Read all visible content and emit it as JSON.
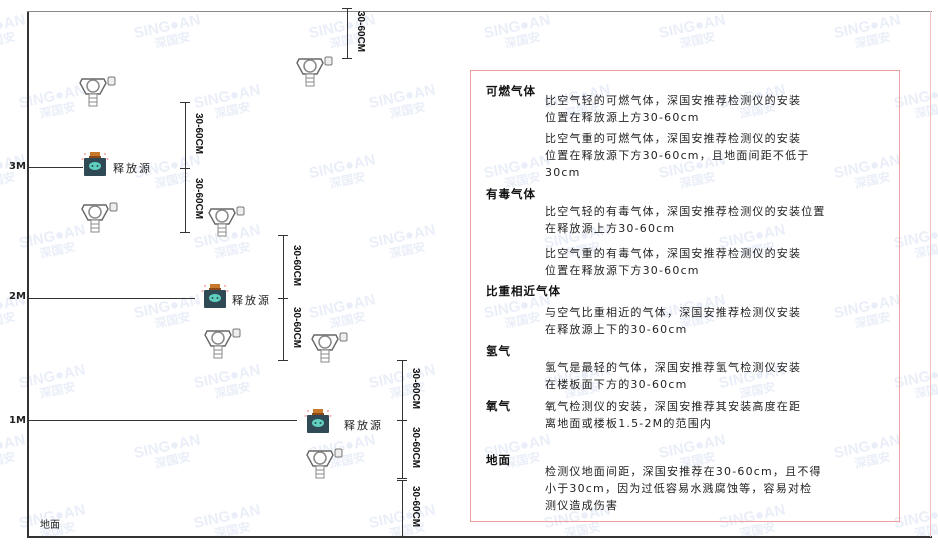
{
  "watermark": {
    "brand": "SING●AN",
    "cn": "深国安"
  },
  "levels": {
    "m3": "3M",
    "m2": "2M",
    "m1": "1M",
    "ground": "地面"
  },
  "source_label": "释放源",
  "dimension_label": "30-60CM",
  "legend": {
    "sections": [
      {
        "title": "可燃气体",
        "paragraphs": [
          [
            "比空气轻的可燃气体，深国安推荐检测仪的安装",
            "位置在释放源上方30-60cm"
          ],
          [
            "比空气重的可燃气体，深国安推荐检测仪的安装",
            "位置在释放源下方30-60cm，且地面间距不低于",
            "30cm"
          ]
        ]
      },
      {
        "title": "有毒气体",
        "paragraphs": [
          [
            "比空气轻的有毒气体，深国安推荐检测仪的安装位置",
            "在释放源上方30-60cm"
          ],
          [
            "比空气重的有毒气体，深国安推荐检测仪的安装",
            "位置在释放源下方30-60cm"
          ]
        ]
      },
      {
        "title": "比重相近气体",
        "paragraphs": [
          [
            "与空气比重相近的气体，深国安推荐检测仪安装",
            "在释放源上下的30-60cm"
          ]
        ]
      },
      {
        "title": "氢气",
        "paragraphs": [
          [
            "氢气是最轻的气体，深国安推荐氢气检测仪安装",
            "在楼板面下方的30-60cm"
          ]
        ]
      },
      {
        "title": "氧气",
        "paragraphs": [
          [
            "氧气检测仪的安装，深国安推荐其安装高度在距",
            "离地面或楼板1.5-2M的范围内"
          ]
        ]
      },
      {
        "title": "地面",
        "paragraphs": [
          [
            "检测仪地面间距，深国安推荐在30-60cm，且不得",
            "小于30cm，因为过低容易水溅腐蚀等，容易对检",
            "测仪造成伤害"
          ]
        ]
      }
    ]
  },
  "colors": {
    "frame": "#333333",
    "legend_border": "#f0a0a0",
    "source_body": "#2f4a55",
    "source_cap": "#c8782a",
    "source_face": "#5fd0c0"
  }
}
